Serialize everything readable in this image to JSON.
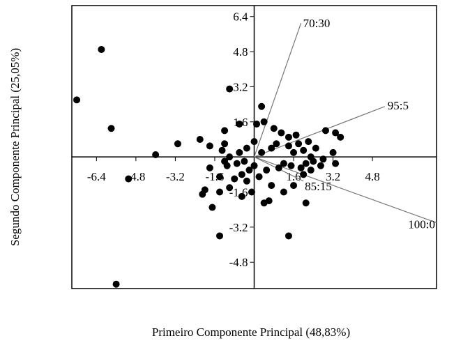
{
  "chart_data": {
    "type": "scatter",
    "title": "",
    "xlabel": "Primeiro Componente Principal (48,83%)",
    "ylabel": "Segundo Componente Principal (25,05%)",
    "xlim": [
      -7.4,
      7.4
    ],
    "ylim": [
      -6.0,
      6.9
    ],
    "grid": false,
    "x_ticks": [
      -6.4,
      -4.8,
      -3.2,
      -1.6,
      1.6,
      3.2,
      4.8
    ],
    "x_tick_labels": [
      "-6.4",
      "-4.8",
      "-3.2",
      "-1.6",
      "1.6",
      "3.2",
      "4.8"
    ],
    "y_ticks": [
      6.4,
      4.8,
      3.2,
      1.6,
      -1.6,
      -3.2,
      -4.8
    ],
    "y_tick_labels": [
      "6.4",
      "4.8",
      "3.2",
      "1.6",
      "-1.6",
      "-3.2",
      "-4.8"
    ],
    "points": [
      [
        -7.2,
        2.6
      ],
      [
        -6.2,
        4.9
      ],
      [
        -5.8,
        1.3
      ],
      [
        -5.6,
        -5.8
      ],
      [
        -5.1,
        -1.0
      ],
      [
        -4.0,
        0.1
      ],
      [
        -3.1,
        0.6
      ],
      [
        -2.2,
        0.8
      ],
      [
        -2.1,
        -1.7
      ],
      [
        -2.0,
        -1.5
      ],
      [
        -1.8,
        0.5
      ],
      [
        -1.8,
        -0.5
      ],
      [
        -1.7,
        -2.3
      ],
      [
        -1.4,
        -3.6
      ],
      [
        -1.4,
        -0.9
      ],
      [
        -1.4,
        -1.6
      ],
      [
        -1.3,
        0.3
      ],
      [
        -1.2,
        1.2
      ],
      [
        -1.2,
        0.6
      ],
      [
        -1.2,
        -0.2
      ],
      [
        -1.1,
        -0.4
      ],
      [
        -1.0,
        -1.4
      ],
      [
        -1.0,
        0.0
      ],
      [
        -1.0,
        3.1
      ],
      [
        -0.8,
        -1.0
      ],
      [
        -0.7,
        -0.3
      ],
      [
        -0.6,
        0.2
      ],
      [
        -0.6,
        1.5
      ],
      [
        -0.5,
        -0.8
      ],
      [
        -0.5,
        -1.8
      ],
      [
        -0.4,
        -0.2
      ],
      [
        -0.3,
        0.4
      ],
      [
        -0.3,
        -1.1
      ],
      [
        -0.2,
        -0.6
      ],
      [
        -0.1,
        -1.6
      ],
      [
        0.0,
        0.7
      ],
      [
        0.0,
        -0.4
      ],
      [
        0.1,
        1.5
      ],
      [
        0.2,
        -0.9
      ],
      [
        0.3,
        0.2
      ],
      [
        0.3,
        2.3
      ],
      [
        0.4,
        -2.1
      ],
      [
        0.4,
        1.6
      ],
      [
        0.5,
        -0.6
      ],
      [
        0.6,
        -2.0
      ],
      [
        0.7,
        0.4
      ],
      [
        0.7,
        -1.3
      ],
      [
        0.8,
        1.3
      ],
      [
        0.9,
        0.6
      ],
      [
        1.0,
        -0.5
      ],
      [
        1.1,
        1.1
      ],
      [
        1.2,
        -0.3
      ],
      [
        1.2,
        -1.6
      ],
      [
        1.4,
        0.5
      ],
      [
        1.4,
        0.9
      ],
      [
        1.5,
        -0.4
      ],
      [
        1.6,
        -1.3
      ],
      [
        1.6,
        0.2
      ],
      [
        1.7,
        1.0
      ],
      [
        1.8,
        0.6
      ],
      [
        1.9,
        -0.5
      ],
      [
        2.0,
        0.3
      ],
      [
        2.0,
        -0.8
      ],
      [
        2.1,
        -0.3
      ],
      [
        2.2,
        0.7
      ],
      [
        2.3,
        -0.6
      ],
      [
        2.3,
        0.0
      ],
      [
        2.4,
        -0.2
      ],
      [
        2.5,
        0.4
      ],
      [
        2.7,
        -0.4
      ],
      [
        2.8,
        -0.1
      ],
      [
        2.9,
        1.2
      ],
      [
        3.2,
        0.2
      ],
      [
        3.3,
        1.1
      ],
      [
        3.5,
        0.9
      ],
      [
        1.4,
        -3.6
      ],
      [
        2.1,
        -2.1
      ],
      [
        3.3,
        -0.3
      ]
    ],
    "loadings": [
      {
        "label": "70:30",
        "x": 1.9,
        "y": 6.1
      },
      {
        "label": "95:5",
        "x": 5.3,
        "y": 2.3
      },
      {
        "label": "85:15",
        "x": 2.0,
        "y": -1.1
      },
      {
        "label": "100:0",
        "x": 7.4,
        "y": -3.0
      }
    ]
  }
}
